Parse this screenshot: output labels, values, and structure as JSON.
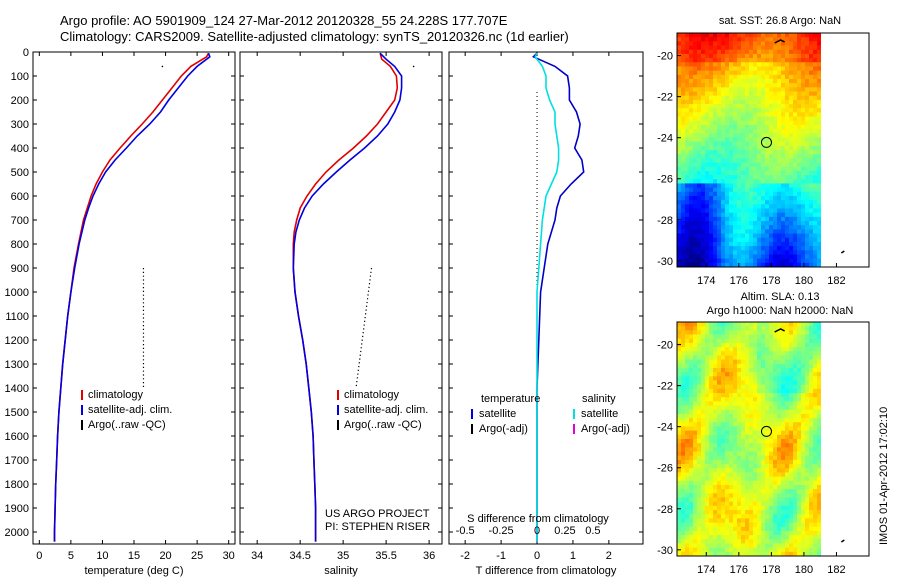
{
  "title_line1": "Argo profile: AO 5901909_124 27-Mar-2012 20120328_55 24.228S 177.707E",
  "title_line2": "Climatology: CARS2009. Satellite-adjusted climatology: synTS_20120326.nc (1d earlier)",
  "map1_title": "sat. SST: 26.8 Argo: NaN",
  "map2_title1": "Altim. SLA: 0.13",
  "map2_title2": "Argo h1000: NaN h2000: NaN",
  "side_label": "IMOS 01-Apr-2012 17:02:10",
  "chart_data": [
    {
      "type": "line",
      "xlabel": "temperature (deg C)",
      "xlim": [
        -1,
        31
      ],
      "ylim": [
        2050,
        0
      ],
      "xticks": [
        0,
        5,
        10,
        15,
        20,
        25,
        30
      ],
      "yticks": [
        0,
        100,
        200,
        300,
        400,
        500,
        600,
        700,
        800,
        900,
        1000,
        1100,
        1200,
        1300,
        1400,
        1500,
        1600,
        1700,
        1800,
        1900,
        2000
      ],
      "legend": [
        "climatology",
        "satellite-adj. clim.",
        "Argo(..raw -QC)"
      ],
      "legend_colors": [
        "#e00000",
        "#0000e0",
        "#000000"
      ],
      "series": [
        {
          "name": "climatology",
          "color": "#e00000",
          "points": [
            [
              26.8,
              5
            ],
            [
              26.5,
              20
            ],
            [
              24,
              60
            ],
            [
              22.5,
              100
            ],
            [
              21,
              150
            ],
            [
              19.5,
              200
            ],
            [
              18,
              250
            ],
            [
              16.3,
              300
            ],
            [
              14.5,
              350
            ],
            [
              12.8,
              400
            ],
            [
              11.2,
              450
            ],
            [
              10,
              500
            ],
            [
              9,
              550
            ],
            [
              8.2,
              600
            ],
            [
              7.6,
              650
            ],
            [
              7,
              700
            ],
            [
              6.2,
              800
            ],
            [
              5.5,
              900
            ],
            [
              5,
              1000
            ],
            [
              4.5,
              1100
            ],
            [
              4.1,
              1200
            ],
            [
              3.7,
              1300
            ],
            [
              3.4,
              1400
            ],
            [
              3.1,
              1500
            ],
            [
              2.9,
              1600
            ],
            [
              2.75,
              1700
            ],
            [
              2.6,
              1800
            ],
            [
              2.5,
              1900
            ],
            [
              2.4,
              2000
            ],
            [
              2.4,
              2040
            ]
          ]
        },
        {
          "name": "satellite-adj. clim.",
          "color": "#0000e0",
          "points": [
            [
              26.8,
              5
            ],
            [
              27,
              20
            ],
            [
              25,
              60
            ],
            [
              23.5,
              100
            ],
            [
              22,
              150
            ],
            [
              20.5,
              200
            ],
            [
              19.2,
              250
            ],
            [
              17.5,
              300
            ],
            [
              15.5,
              350
            ],
            [
              13.8,
              400
            ],
            [
              12,
              450
            ],
            [
              10.5,
              500
            ],
            [
              9.4,
              550
            ],
            [
              8.5,
              600
            ],
            [
              7.8,
              650
            ],
            [
              7.2,
              700
            ],
            [
              6.3,
              800
            ],
            [
              5.6,
              900
            ],
            [
              5,
              1000
            ],
            [
              4.5,
              1100
            ],
            [
              4.1,
              1200
            ],
            [
              3.7,
              1300
            ],
            [
              3.4,
              1400
            ],
            [
              3.1,
              1500
            ],
            [
              2.9,
              1600
            ],
            [
              2.75,
              1700
            ],
            [
              2.6,
              1800
            ],
            [
              2.5,
              1900
            ],
            [
              2.4,
              2000
            ],
            [
              2.4,
              2040
            ]
          ]
        }
      ],
      "argo": {
        "color": "#000000",
        "points": [
          [
            16.5,
            900
          ],
          [
            16.5,
            1400
          ]
        ],
        "extra_point": [
          19.5,
          60
        ]
      }
    },
    {
      "type": "line",
      "xlabel": "salinity",
      "xlim": [
        33.8,
        36.15
      ],
      "ylim": [
        2050,
        0
      ],
      "xticks": [
        34,
        34.5,
        35,
        35.5,
        36
      ],
      "legend": [
        "climatology",
        "satellite-adj. clim.",
        "Argo(..raw -QC)"
      ],
      "legend_colors": [
        "#e00000",
        "#0000e0",
        "#000000"
      ],
      "annotation": [
        "US ARGO PROJECT",
        "PI: STEPHEN RISER"
      ],
      "series": [
        {
          "name": "climatology",
          "color": "#e00000",
          "points": [
            [
              35.43,
              5
            ],
            [
              35.45,
              30
            ],
            [
              35.55,
              60
            ],
            [
              35.62,
              100
            ],
            [
              35.63,
              150
            ],
            [
              35.6,
              200
            ],
            [
              35.5,
              250
            ],
            [
              35.4,
              300
            ],
            [
              35.27,
              350
            ],
            [
              35.12,
              400
            ],
            [
              34.95,
              450
            ],
            [
              34.8,
              500
            ],
            [
              34.68,
              550
            ],
            [
              34.58,
              600
            ],
            [
              34.5,
              650
            ],
            [
              34.46,
              700
            ],
            [
              34.43,
              750
            ],
            [
              34.42,
              800
            ],
            [
              34.42,
              900
            ],
            [
              34.44,
              1000
            ],
            [
              34.48,
              1100
            ],
            [
              34.53,
              1200
            ],
            [
              34.57,
              1300
            ],
            [
              34.6,
              1400
            ],
            [
              34.63,
              1500
            ],
            [
              34.65,
              1600
            ],
            [
              34.66,
              1700
            ],
            [
              34.67,
              1800
            ],
            [
              34.68,
              1900
            ],
            [
              34.68,
              2000
            ],
            [
              34.68,
              2040
            ]
          ]
        },
        {
          "name": "satellite-adj. clim.",
          "color": "#0000e0",
          "points": [
            [
              35.43,
              5
            ],
            [
              35.5,
              30
            ],
            [
              35.6,
              60
            ],
            [
              35.68,
              100
            ],
            [
              35.68,
              150
            ],
            [
              35.66,
              200
            ],
            [
              35.6,
              250
            ],
            [
              35.52,
              300
            ],
            [
              35.4,
              350
            ],
            [
              35.25,
              400
            ],
            [
              35.08,
              450
            ],
            [
              34.92,
              500
            ],
            [
              34.77,
              550
            ],
            [
              34.64,
              600
            ],
            [
              34.55,
              650
            ],
            [
              34.49,
              700
            ],
            [
              34.45,
              750
            ],
            [
              34.43,
              800
            ],
            [
              34.42,
              900
            ],
            [
              34.44,
              1000
            ],
            [
              34.48,
              1100
            ],
            [
              34.53,
              1200
            ],
            [
              34.57,
              1300
            ],
            [
              34.6,
              1400
            ],
            [
              34.63,
              1500
            ],
            [
              34.65,
              1600
            ],
            [
              34.66,
              1700
            ],
            [
              34.67,
              1800
            ],
            [
              34.68,
              1900
            ],
            [
              34.68,
              2000
            ],
            [
              34.68,
              2040
            ]
          ]
        }
      ],
      "argo": {
        "color": "#000000",
        "points": [
          [
            35.33,
            900
          ],
          [
            35.15,
            1400
          ]
        ],
        "extra_point": [
          35.82,
          60
        ]
      }
    },
    {
      "type": "line",
      "xlabel": "T difference from climatology",
      "xlabel2": "S difference from climatology",
      "xlim": [
        -2.45,
        2.95
      ],
      "ylim": [
        2050,
        0
      ],
      "xticks": [
        -2,
        -1,
        0,
        1,
        2
      ],
      "xticks_top": [
        "-0.5",
        "-0.25",
        "0",
        "0.25",
        "0.5"
      ],
      "xticks_top_values": [
        -2,
        -1,
        0,
        1,
        2
      ],
      "legend_t": [
        "temperature",
        "satellite",
        "Argo(-adj)"
      ],
      "legend_s": [
        "salinity",
        "satellite",
        "Argo(-adj)"
      ],
      "legend_colors_t": [
        "#0000e0",
        "#000000"
      ],
      "legend_colors_s": [
        "#00e0e0",
        "#e000e0"
      ],
      "series": [
        {
          "name": "temperature satellite",
          "color": "#0000c8",
          "points": [
            [
              0,
              5
            ],
            [
              -0.1,
              20
            ],
            [
              0.5,
              60
            ],
            [
              0.85,
              100
            ],
            [
              0.9,
              150
            ],
            [
              0.9,
              200
            ],
            [
              1.1,
              250
            ],
            [
              1.2,
              300
            ],
            [
              1.15,
              350
            ],
            [
              1.05,
              400
            ],
            [
              1.25,
              450
            ],
            [
              1.3,
              500
            ],
            [
              0.95,
              550
            ],
            [
              0.65,
              600
            ],
            [
              0.55,
              650
            ],
            [
              0.5,
              700
            ],
            [
              0.3,
              800
            ],
            [
              0.2,
              900
            ],
            [
              0.1,
              1000
            ],
            [
              0.05,
              1200
            ],
            [
              0,
              1400
            ],
            [
              0,
              1600
            ],
            [
              0,
              2040
            ]
          ]
        },
        {
          "name": "salinity satellite",
          "color": "#00e0e0",
          "points": [
            [
              0,
              5
            ],
            [
              -0.05,
              20
            ],
            [
              0.15,
              60
            ],
            [
              0.25,
              100
            ],
            [
              0.25,
              150
            ],
            [
              0.35,
              200
            ],
            [
              0.5,
              250
            ],
            [
              0.5,
              300
            ],
            [
              0.55,
              350
            ],
            [
              0.6,
              400
            ],
            [
              0.6,
              450
            ],
            [
              0.55,
              500
            ],
            [
              0.4,
              550
            ],
            [
              0.25,
              600
            ],
            [
              0.2,
              650
            ],
            [
              0.15,
              700
            ],
            [
              0.1,
              800
            ],
            [
              0.05,
              900
            ],
            [
              0,
              1000
            ],
            [
              0,
              1300
            ],
            [
              0,
              1600
            ],
            [
              0,
              2040
            ]
          ]
        }
      ]
    },
    {
      "type": "heatmap",
      "xlim": [
        172.2,
        184
      ],
      "ylim": [
        -30.3,
        -18.9
      ],
      "xticks": [
        174,
        176,
        178,
        180,
        182
      ],
      "yticks": [
        -20,
        -22,
        -24,
        -26,
        -28,
        -30
      ],
      "marker": [
        177.7,
        -24.23
      ]
    },
    {
      "type": "heatmap",
      "xlim": [
        172.2,
        184
      ],
      "ylim": [
        -30.3,
        -18.9
      ],
      "xticks": [
        174,
        176,
        178,
        180,
        182
      ],
      "yticks": [
        -20,
        -22,
        -24,
        -26,
        -28,
        -30
      ],
      "marker": [
        177.7,
        -24.23
      ]
    }
  ]
}
